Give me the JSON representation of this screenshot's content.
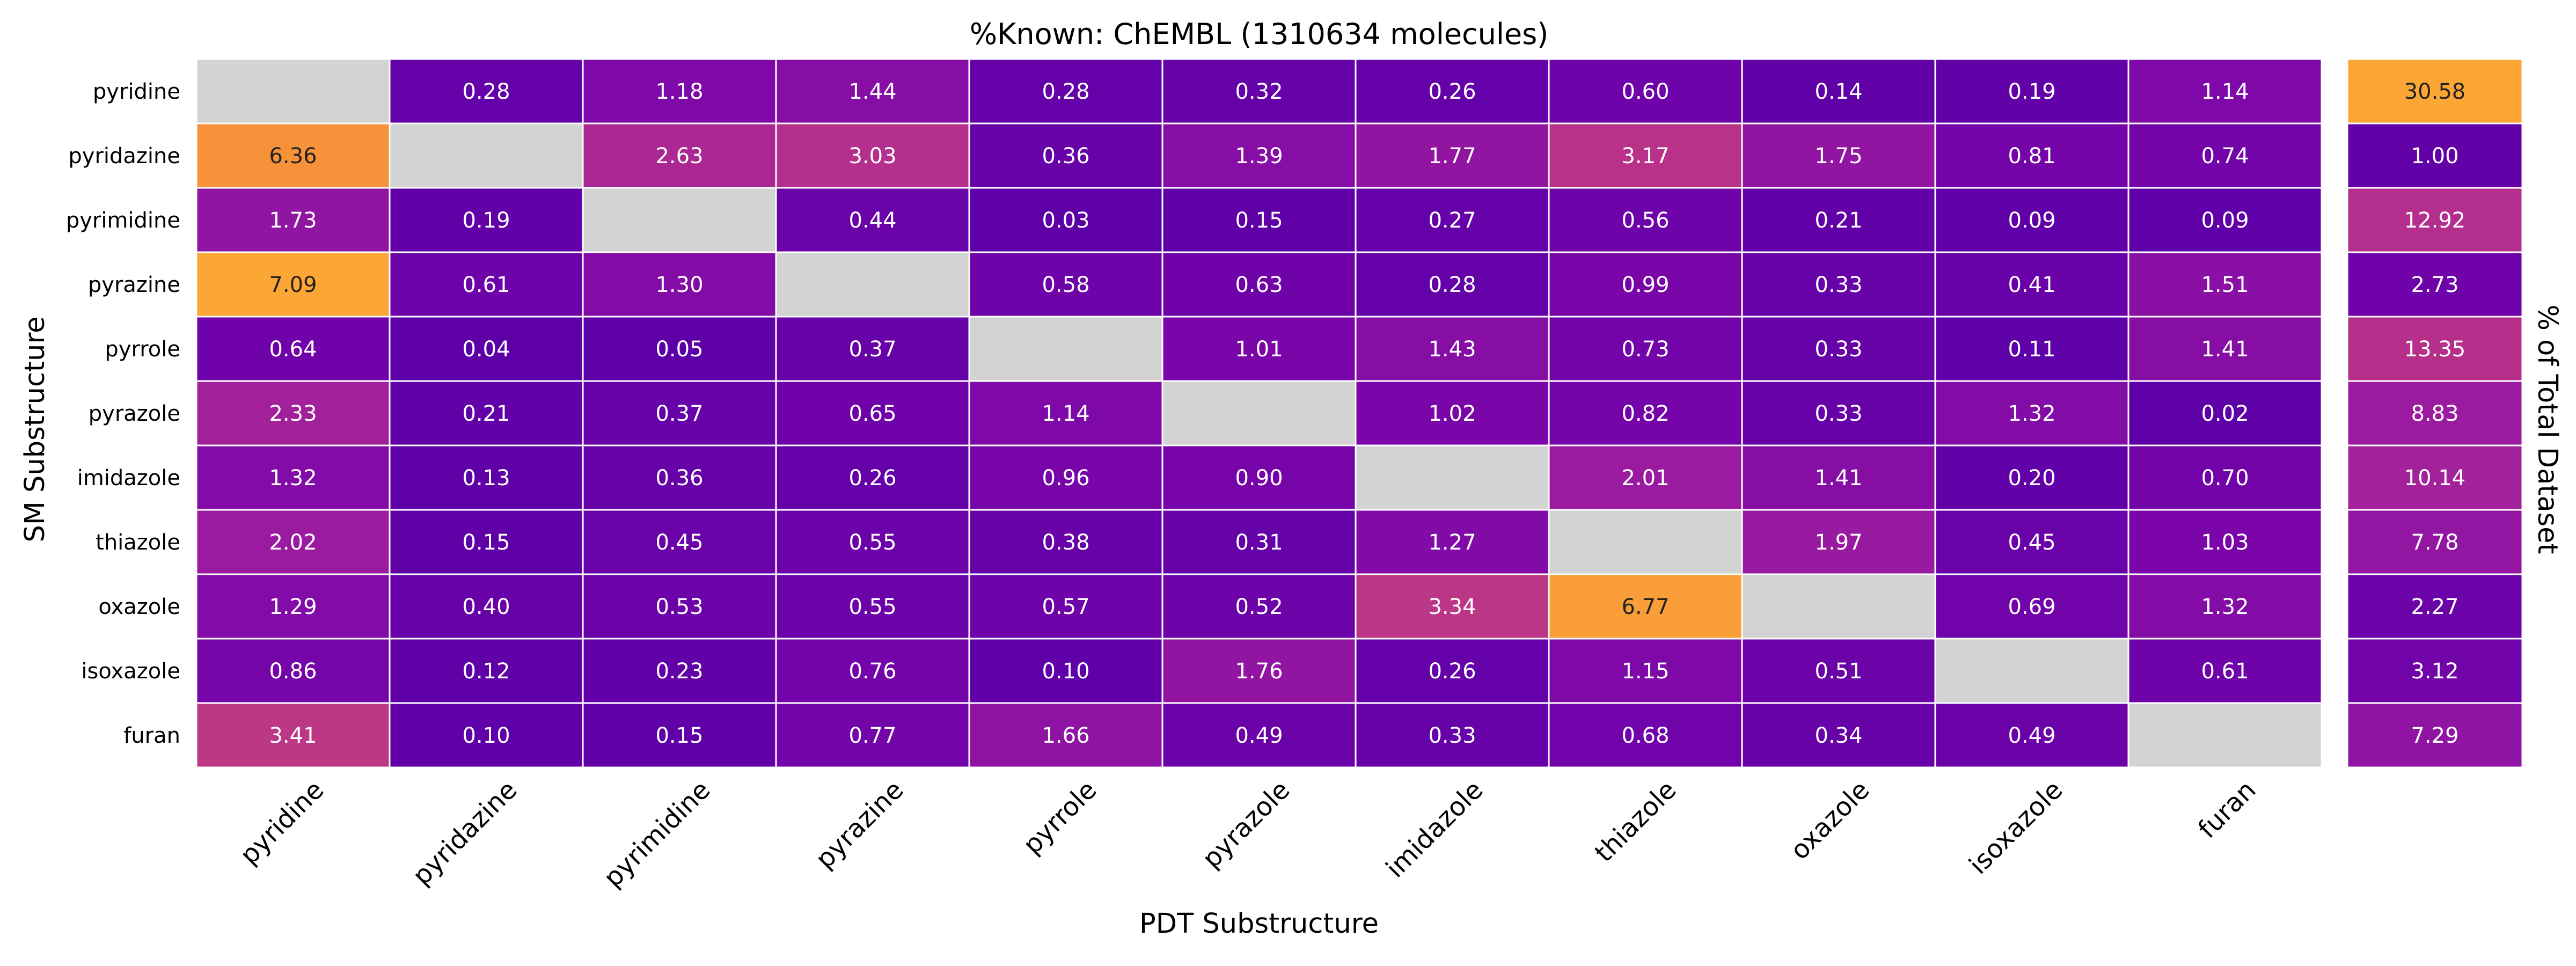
{
  "chart_data": {
    "type": "heatmap",
    "title": "%Known: ChEMBL (1310634 molecules)",
    "xlabel": "PDT Substructure",
    "ylabel": "SM Substructure",
    "side_label": "% of Total Dataset",
    "x_categories": [
      "pyridine",
      "pyridazine",
      "pyrimidine",
      "pyrazine",
      "pyrrole",
      "pyrazole",
      "imidazole",
      "thiazole",
      "oxazole",
      "isoxazole",
      "furan"
    ],
    "y_categories": [
      "pyridine",
      "pyridazine",
      "pyrimidine",
      "pyrazine",
      "pyrrole",
      "pyrazole",
      "imidazole",
      "thiazole",
      "oxazole",
      "isoxazole",
      "furan"
    ],
    "values": [
      [
        null,
        0.28,
        1.18,
        1.44,
        0.28,
        0.32,
        0.26,
        0.6,
        0.14,
        0.19,
        1.14
      ],
      [
        6.36,
        null,
        2.63,
        3.03,
        0.36,
        1.39,
        1.77,
        3.17,
        1.75,
        0.81,
        0.74
      ],
      [
        1.73,
        0.19,
        null,
        0.44,
        0.03,
        0.15,
        0.27,
        0.56,
        0.21,
        0.09,
        0.09
      ],
      [
        7.09,
        0.61,
        1.3,
        null,
        0.58,
        0.63,
        0.28,
        0.99,
        0.33,
        0.41,
        1.51
      ],
      [
        0.64,
        0.04,
        0.05,
        0.37,
        null,
        1.01,
        1.43,
        0.73,
        0.33,
        0.11,
        1.41
      ],
      [
        2.33,
        0.21,
        0.37,
        0.65,
        1.14,
        null,
        1.02,
        0.82,
        0.33,
        1.32,
        0.02
      ],
      [
        1.32,
        0.13,
        0.36,
        0.26,
        0.96,
        0.9,
        null,
        2.01,
        1.41,
        0.2,
        0.7
      ],
      [
        2.02,
        0.15,
        0.45,
        0.55,
        0.38,
        0.31,
        1.27,
        null,
        1.97,
        0.45,
        1.03
      ],
      [
        1.29,
        0.4,
        0.53,
        0.55,
        0.57,
        0.52,
        3.34,
        6.77,
        null,
        0.69,
        1.32
      ],
      [
        0.86,
        0.12,
        0.23,
        0.76,
        0.1,
        1.76,
        0.26,
        1.15,
        0.51,
        null,
        0.61
      ],
      [
        3.41,
        0.1,
        0.15,
        0.77,
        1.66,
        0.49,
        0.33,
        0.68,
        0.34,
        0.49,
        null
      ]
    ],
    "totals": [
      30.58,
      1.0,
      12.92,
      2.73,
      13.35,
      8.83,
      10.14,
      7.78,
      2.27,
      3.12,
      7.29
    ],
    "main_vmax": 7.09,
    "totals_vmax": 30.58,
    "missing_color": "#d3d3d3",
    "colormap": [
      "#5c00a8",
      "#7a05a9",
      "#9a1ba0",
      "#b52f8c",
      "#c94677",
      "#e0645a",
      "#f48c3c",
      "#fca636"
    ]
  }
}
